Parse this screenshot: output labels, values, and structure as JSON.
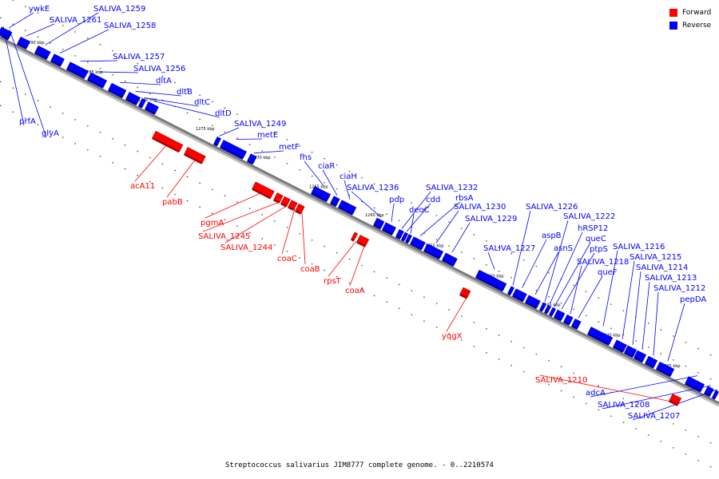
{
  "caption": "Streptococcus salivarius JIM8777 complete genome. - 0..2210574",
  "legend": [
    {
      "label": "Forward",
      "color": "#ff0000"
    },
    {
      "label": "Reverse",
      "color": "#0000ff"
    }
  ],
  "colors": {
    "forward": "#ff0000",
    "reverse": "#0000ff",
    "backbone": "#7a7a7a"
  },
  "ticks": [
    "1290 kbp",
    "1285 kbp",
    "1280 kbp",
    "1275 kbp",
    "1270 kbp",
    "1265 kbp",
    "1260 kbp",
    "1255 kbp",
    "1250 kbp",
    "1245 kbp",
    "1240 kbp",
    "1235 kbp"
  ],
  "genes": [
    {
      "name": "ywkE",
      "strand": "reverse"
    },
    {
      "name": "SALIVA_1261",
      "strand": "reverse"
    },
    {
      "name": "SALIVA_1259",
      "strand": "reverse"
    },
    {
      "name": "SALIVA_1258",
      "strand": "reverse"
    },
    {
      "name": "SALIVA_1257",
      "strand": "reverse"
    },
    {
      "name": "SALIVA_1256",
      "strand": "reverse"
    },
    {
      "name": "dltA",
      "strand": "reverse"
    },
    {
      "name": "dltB",
      "strand": "reverse"
    },
    {
      "name": "dltC",
      "strand": "reverse"
    },
    {
      "name": "dltD",
      "strand": "reverse"
    },
    {
      "name": "prfA",
      "strand": "reverse"
    },
    {
      "name": "glyA",
      "strand": "reverse"
    },
    {
      "name": "SALIVA_1249",
      "strand": "reverse"
    },
    {
      "name": "metE",
      "strand": "reverse"
    },
    {
      "name": "metF",
      "strand": "reverse"
    },
    {
      "name": "fhs",
      "strand": "reverse"
    },
    {
      "name": "ciaR",
      "strand": "reverse"
    },
    {
      "name": "ciaH",
      "strand": "reverse"
    },
    {
      "name": "SALIVA_1236",
      "strand": "reverse"
    },
    {
      "name": "pdp",
      "strand": "reverse"
    },
    {
      "name": "SALIVA_1232",
      "strand": "reverse"
    },
    {
      "name": "cdd",
      "strand": "reverse"
    },
    {
      "name": "deoC",
      "strand": "reverse"
    },
    {
      "name": "rbsA",
      "strand": "reverse"
    },
    {
      "name": "SALIVA_1230",
      "strand": "reverse"
    },
    {
      "name": "SALIVA_1229",
      "strand": "reverse"
    },
    {
      "name": "SALIVA_1227",
      "strand": "reverse"
    },
    {
      "name": "SALIVA_1226",
      "strand": "reverse"
    },
    {
      "name": "aspB",
      "strand": "reverse"
    },
    {
      "name": "asnS",
      "strand": "reverse"
    },
    {
      "name": "SALIVA_1222",
      "strand": "reverse"
    },
    {
      "name": "hRSP12",
      "strand": "reverse"
    },
    {
      "name": "queC",
      "strand": "reverse"
    },
    {
      "name": "ptpS",
      "strand": "reverse"
    },
    {
      "name": "SALIVA_1218",
      "strand": "reverse"
    },
    {
      "name": "queF",
      "strand": "reverse"
    },
    {
      "name": "SALIVA_1216",
      "strand": "reverse"
    },
    {
      "name": "SALIVA_1215",
      "strand": "reverse"
    },
    {
      "name": "SALIVA_1214",
      "strand": "reverse"
    },
    {
      "name": "SALIVA_1213",
      "strand": "reverse"
    },
    {
      "name": "SALIVA_1212",
      "strand": "reverse"
    },
    {
      "name": "pepDA",
      "strand": "reverse"
    },
    {
      "name": "adcA",
      "strand": "reverse"
    },
    {
      "name": "SALIVA_1208",
      "strand": "reverse"
    },
    {
      "name": "SALIVA_1207",
      "strand": "reverse"
    },
    {
      "name": "acA11",
      "strand": "forward"
    },
    {
      "name": "pabB",
      "strand": "forward"
    },
    {
      "name": "pgmA",
      "strand": "forward"
    },
    {
      "name": "SALIVA_1245",
      "strand": "forward"
    },
    {
      "name": "SALIVA_1244",
      "strand": "forward"
    },
    {
      "name": "coaC",
      "strand": "forward"
    },
    {
      "name": "coaB",
      "strand": "forward"
    },
    {
      "name": "rpsT",
      "strand": "forward"
    },
    {
      "name": "coaA",
      "strand": "forward"
    },
    {
      "name": "yqgX",
      "strand": "forward"
    },
    {
      "name": "SALIVA_1210",
      "strand": "forward"
    }
  ]
}
